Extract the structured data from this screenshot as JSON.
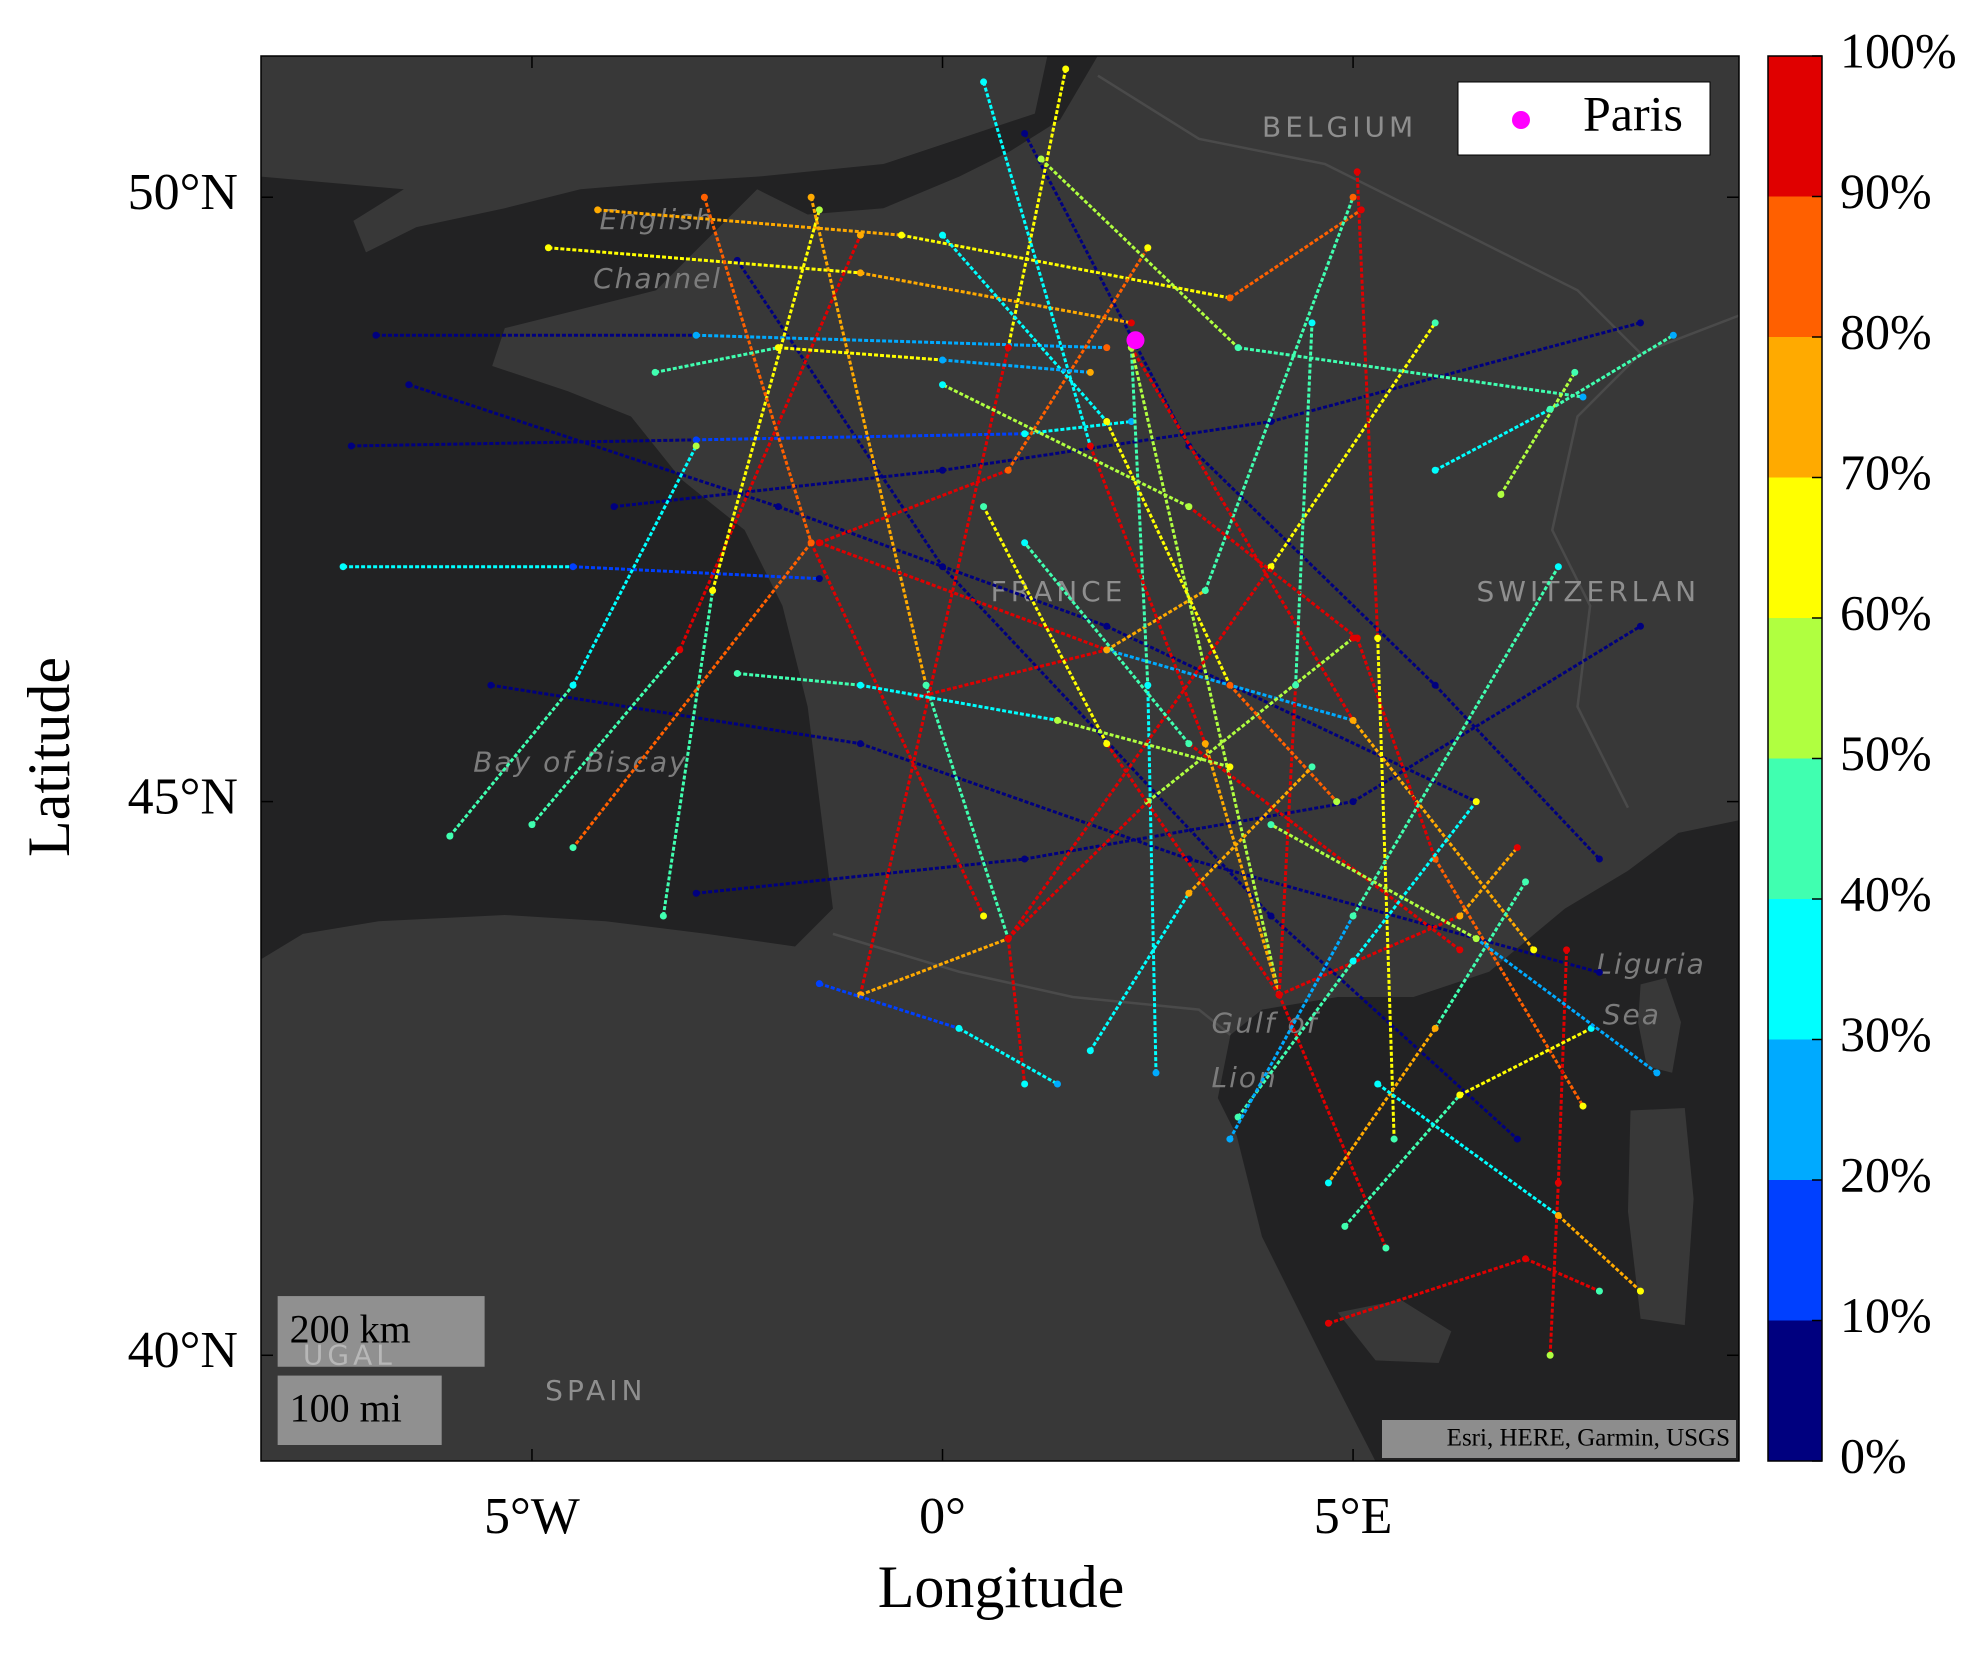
{
  "chart_data": {
    "type": "map",
    "projection": "mercator",
    "xlabel": "Longitude",
    "ylabel": "Latitude",
    "xlim": [
      -8.3,
      9.7
    ],
    "ylim": [
      39.0,
      51.1
    ],
    "xticks": [
      {
        "value": -5,
        "label": "5°W"
      },
      {
        "value": 0,
        "label": "0°"
      },
      {
        "value": 5,
        "label": "5°E"
      }
    ],
    "yticks": [
      {
        "value": 40,
        "label": "40°N"
      },
      {
        "value": 45,
        "label": "45°N"
      },
      {
        "value": 50,
        "label": "50°N"
      }
    ],
    "legend": "upper right",
    "points": [
      {
        "name": "Paris",
        "lon": 2.35,
        "lat": 48.86,
        "color": "#ff00ff"
      }
    ],
    "colorbar": {
      "clim": [
        0,
        100
      ],
      "colors": [
        "#00007f",
        "#0040ff",
        "#00aaff",
        "#00ffff",
        "#40ffb0",
        "#b0ff40",
        "#ffff00",
        "#ffaa00",
        "#ff6000",
        "#e00000"
      ],
      "ticks": [
        {
          "value": 0,
          "label": "0%"
        },
        {
          "value": 10,
          "label": "10%"
        },
        {
          "value": 20,
          "label": "20%"
        },
        {
          "value": 30,
          "label": "30%"
        },
        {
          "value": 40,
          "label": "40%"
        },
        {
          "value": 50,
          "label": "50%"
        },
        {
          "value": 60,
          "label": "60%"
        },
        {
          "value": 70,
          "label": "70%"
        },
        {
          "value": 80,
          "label": "80%"
        },
        {
          "value": 90,
          "label": "90%"
        },
        {
          "value": 100,
          "label": "100%"
        }
      ]
    },
    "tracks": [
      {
        "lon": [
          -6.5,
          -2.0,
          2.0,
          6.5
        ],
        "lat": [
          48.5,
          47.5,
          46.5,
          45.0
        ],
        "values": [
          5,
          5,
          5,
          5
        ]
      },
      {
        "lon": [
          -5.5,
          -1.0,
          3.0,
          8.0
        ],
        "lat": [
          46.0,
          45.5,
          44.5,
          43.5
        ],
        "values": [
          5,
          5,
          5,
          5
        ]
      },
      {
        "lon": [
          -3.0,
          1.0,
          5.0,
          8.5
        ],
        "lat": [
          44.2,
          44.5,
          45.0,
          46.5
        ],
        "values": [
          5,
          5,
          5,
          5
        ]
      },
      {
        "lon": [
          -2.5,
          0.0,
          4.0,
          7.0
        ],
        "lat": [
          49.5,
          47.0,
          44.0,
          42.0
        ],
        "values": [
          5,
          5,
          5,
          5
        ]
      },
      {
        "lon": [
          1.0,
          3.0,
          6.0,
          8.0
        ],
        "lat": [
          50.5,
          48.0,
          46.0,
          44.5
        ],
        "values": [
          5,
          5,
          5,
          5
        ]
      },
      {
        "lon": [
          -4.0,
          0.0,
          4.0,
          8.5
        ],
        "lat": [
          47.5,
          47.8,
          48.2,
          49.0
        ],
        "values": [
          5,
          5,
          5,
          5
        ]
      },
      {
        "lon": [
          -7.3,
          -4.5,
          -1.5
        ],
        "lat": [
          47.0,
          47.0,
          46.9
        ],
        "values": [
          30,
          10,
          5
        ]
      },
      {
        "lon": [
          -7.2,
          -3.0,
          1.0,
          2.3
        ],
        "lat": [
          48.0,
          48.05,
          48.1,
          48.2
        ],
        "values": [
          5,
          10,
          30,
          20
        ]
      },
      {
        "lon": [
          -6.9,
          -3.0,
          2.0
        ],
        "lat": [
          48.9,
          48.9,
          48.8
        ],
        "values": [
          5,
          20,
          80
        ]
      },
      {
        "lon": [
          -4.8,
          -1.0,
          2.3
        ],
        "lat": [
          49.6,
          49.4,
          49.0
        ],
        "values": [
          60,
          70,
          90
        ]
      },
      {
        "lon": [
          -4.2,
          -0.5,
          3.5,
          5.1
        ],
        "lat": [
          49.9,
          49.7,
          49.2,
          49.9
        ],
        "values": [
          70,
          60,
          80,
          90
        ]
      },
      {
        "lon": [
          -6.0,
          -4.5,
          -3.0
        ],
        "lat": [
          44.7,
          46.0,
          48.0
        ],
        "values": [
          40,
          30,
          50
        ]
      },
      {
        "lon": [
          -5.0,
          -3.2,
          -1.0
        ],
        "lat": [
          44.8,
          46.3,
          49.7
        ],
        "values": [
          40,
          90,
          70
        ]
      },
      {
        "lon": [
          -3.4,
          -2.8,
          -1.5
        ],
        "lat": [
          44.0,
          46.8,
          49.9
        ],
        "values": [
          40,
          60,
          50
        ]
      },
      {
        "lon": [
          -2.9,
          -1.6,
          0.5
        ],
        "lat": [
          50.0,
          47.2,
          44.0
        ],
        "values": [
          80,
          90,
          60
        ]
      },
      {
        "lon": [
          -1.6,
          -0.2,
          0.8,
          1.0
        ],
        "lat": [
          50.0,
          46.0,
          43.8,
          42.5
        ],
        "values": [
          70,
          40,
          90,
          30
        ]
      },
      {
        "lon": [
          -1.5,
          0.8,
          2.5
        ],
        "lat": [
          47.2,
          47.8,
          49.6
        ],
        "values": [
          90,
          80,
          60
        ]
      },
      {
        "lon": [
          -1.5,
          2.0,
          5.0
        ],
        "lat": [
          47.2,
          46.3,
          45.7
        ],
        "values": [
          90,
          20,
          90
        ]
      },
      {
        "lon": [
          -1.6,
          -4.5
        ],
        "lat": [
          47.2,
          44.6
        ],
        "values": [
          80,
          40
        ]
      },
      {
        "lon": [
          -0.3,
          2.0,
          3.2,
          5.0
        ],
        "lat": [
          45.9,
          46.3,
          46.8,
          50.0
        ],
        "values": [
          90,
          70,
          40,
          80
        ]
      },
      {
        "lon": [
          2.3,
          2.5,
          2.6
        ],
        "lat": [
          48.8,
          46.0,
          42.6
        ],
        "values": [
          40,
          30,
          20
        ]
      },
      {
        "lon": [
          2.3,
          5.0,
          7.2
        ],
        "lat": [
          48.8,
          45.7,
          43.7
        ],
        "values": [
          90,
          70,
          60
        ]
      },
      {
        "lon": [
          2.3,
          4.1,
          5.4
        ],
        "lat": [
          48.8,
          43.3,
          41.0
        ],
        "values": [
          50,
          90,
          40
        ]
      },
      {
        "lon": [
          1.5,
          0.8,
          -1.0
        ],
        "lat": [
          51.0,
          48.8,
          43.3
        ],
        "values": [
          60,
          90,
          50
        ]
      },
      {
        "lon": [
          0.5,
          1.8,
          3.2,
          4.1
        ],
        "lat": [
          50.9,
          48.0,
          45.5,
          43.3
        ],
        "values": [
          30,
          90,
          70,
          100
        ]
      },
      {
        "lon": [
          -1.0,
          0.8,
          2.5,
          5.0
        ],
        "lat": [
          43.3,
          43.8,
          45.0,
          46.4
        ],
        "values": [
          70,
          100,
          50,
          90
        ]
      },
      {
        "lon": [
          0.8,
          4.0,
          6.0
        ],
        "lat": [
          43.8,
          47.0,
          49.0
        ],
        "values": [
          90,
          60,
          40
        ]
      },
      {
        "lon": [
          4.1,
          6.3,
          7.0
        ],
        "lat": [
          43.3,
          44.0,
          44.6
        ],
        "values": [
          100,
          70,
          90
        ]
      },
      {
        "lon": [
          4.1,
          2.0,
          0.5
        ],
        "lat": [
          43.3,
          45.5,
          47.5
        ],
        "values": [
          90,
          60,
          40
        ]
      },
      {
        "lon": [
          4.1,
          4.3,
          4.5
        ],
        "lat": [
          43.3,
          46.0,
          49.0
        ],
        "values": [
          90,
          40,
          30
        ]
      },
      {
        "lon": [
          5.05,
          6.0,
          7.8
        ],
        "lat": [
          46.4,
          44.5,
          42.3
        ],
        "values": [
          90,
          80,
          60
        ]
      },
      {
        "lon": [
          5.05,
          3.0,
          0.0
        ],
        "lat": [
          46.4,
          47.5,
          48.5
        ],
        "values": [
          90,
          50,
          30
        ]
      },
      {
        "lon": [
          5.05,
          5.3,
          5.5
        ],
        "lat": [
          50.2,
          46.4,
          42.0
        ],
        "values": [
          90,
          60,
          40
        ]
      },
      {
        "lon": [
          6.3,
          3.0,
          1.0
        ],
        "lat": [
          43.7,
          45.5,
          47.2
        ],
        "values": [
          100,
          40,
          30
        ]
      },
      {
        "lon": [
          4.7,
          7.1,
          8.0
        ],
        "lat": [
          40.3,
          40.9,
          40.6
        ],
        "values": [
          90,
          90,
          40
        ]
      },
      {
        "lon": [
          7.6,
          7.5,
          7.4
        ],
        "lat": [
          43.7,
          41.6,
          40.0
        ],
        "values": [
          90,
          90,
          50
        ]
      },
      {
        "lon": [
          4.9,
          6.3,
          7.9
        ],
        "lat": [
          41.2,
          42.4,
          43.0
        ],
        "values": [
          40,
          60,
          30
        ]
      },
      {
        "lon": [
          3.6,
          5.0,
          6.5
        ],
        "lat": [
          42.2,
          43.6,
          45.0
        ],
        "values": [
          40,
          30,
          60
        ]
      },
      {
        "lon": [
          7.1,
          6.0,
          4.7
        ],
        "lat": [
          44.3,
          43.0,
          41.6
        ],
        "values": [
          40,
          70,
          30
        ]
      },
      {
        "lon": [
          8.7,
          6.5,
          4.0
        ],
        "lat": [
          42.6,
          43.8,
          44.8
        ],
        "values": [
          20,
          50,
          40
        ]
      },
      {
        "lon": [
          -2.5,
          -1.0,
          1.4,
          3.5
        ],
        "lat": [
          46.1,
          46.0,
          45.7,
          45.3
        ],
        "values": [
          40,
          30,
          50,
          60
        ]
      },
      {
        "lon": [
          0.0,
          2.0,
          3.5,
          4.8
        ],
        "lat": [
          49.7,
          48.2,
          46.0,
          45.0
        ],
        "values": [
          30,
          60,
          80,
          50
        ]
      },
      {
        "lon": [
          1.2,
          3.6,
          7.8
        ],
        "lat": [
          50.3,
          48.8,
          48.4
        ],
        "values": [
          50,
          40,
          20
        ]
      },
      {
        "lon": [
          6.8,
          7.7
        ],
        "lat": [
          47.6,
          48.6
        ],
        "values": [
          50,
          40
        ]
      },
      {
        "lon": [
          3.5,
          5.0,
          7.5
        ],
        "lat": [
          42.0,
          44.0,
          47.0
        ],
        "values": [
          20,
          40,
          30
        ]
      },
      {
        "lon": [
          -3.5,
          -2.0,
          0.0,
          1.8
        ],
        "lat": [
          48.6,
          48.8,
          48.7,
          48.6
        ],
        "values": [
          40,
          60,
          20,
          70
        ]
      },
      {
        "lon": [
          6.0,
          7.4,
          8.9
        ],
        "lat": [
          47.8,
          48.3,
          48.9
        ],
        "values": [
          30,
          40,
          20
        ]
      },
      {
        "lon": [
          1.8,
          3.0,
          4.5
        ],
        "lat": [
          42.8,
          44.2,
          45.3
        ],
        "values": [
          30,
          70,
          40
        ]
      },
      {
        "lon": [
          -1.5,
          0.2,
          1.4
        ],
        "lat": [
          43.4,
          43.0,
          42.5
        ],
        "values": [
          10,
          30,
          20
        ]
      },
      {
        "lon": [
          5.3,
          7.5,
          8.5
        ],
        "lat": [
          42.5,
          41.3,
          40.6
        ],
        "values": [
          30,
          70,
          60
        ]
      }
    ]
  },
  "basemap": {
    "labels": [
      "BELGIUM",
      "English",
      "Channel",
      "FRANCE",
      "SWITZERLAN",
      "Bay of Biscay",
      "Gulf of",
      "Lion",
      "Liguria",
      "Sea",
      "SPAIN",
      "UGAL"
    ],
    "scale_bar": [
      "200 km",
      "100 mi"
    ],
    "attribution": "Esri, HERE, Garmin, USGS"
  }
}
